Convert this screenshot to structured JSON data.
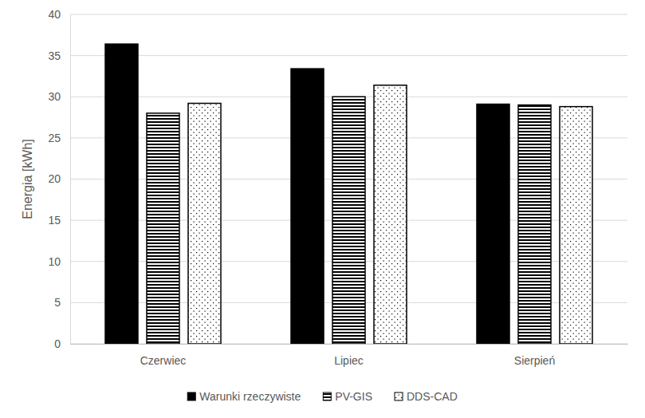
{
  "chart_data": {
    "type": "bar",
    "y_label": "Energia [kWh]",
    "categories": [
      "Czerwiec",
      "Lipiec",
      "Sierpień"
    ],
    "series": [
      {
        "name": "Warunki rzeczywiste",
        "color": "#000000",
        "values": [
          36.4,
          33.4,
          29.1
        ]
      },
      {
        "name": "PV-GIS",
        "color": "#000000",
        "values": [
          28.0,
          30.0,
          29.0
        ]
      },
      {
        "name": "DDS-CAD",
        "color": "#000000",
        "values": [
          29.2,
          31.4,
          28.8
        ]
      }
    ],
    "ylim": [
      0,
      40
    ],
    "yticks": [
      0,
      5,
      10,
      15,
      20,
      25,
      30,
      35,
      40
    ],
    "grid": true,
    "legend": "bottom"
  }
}
